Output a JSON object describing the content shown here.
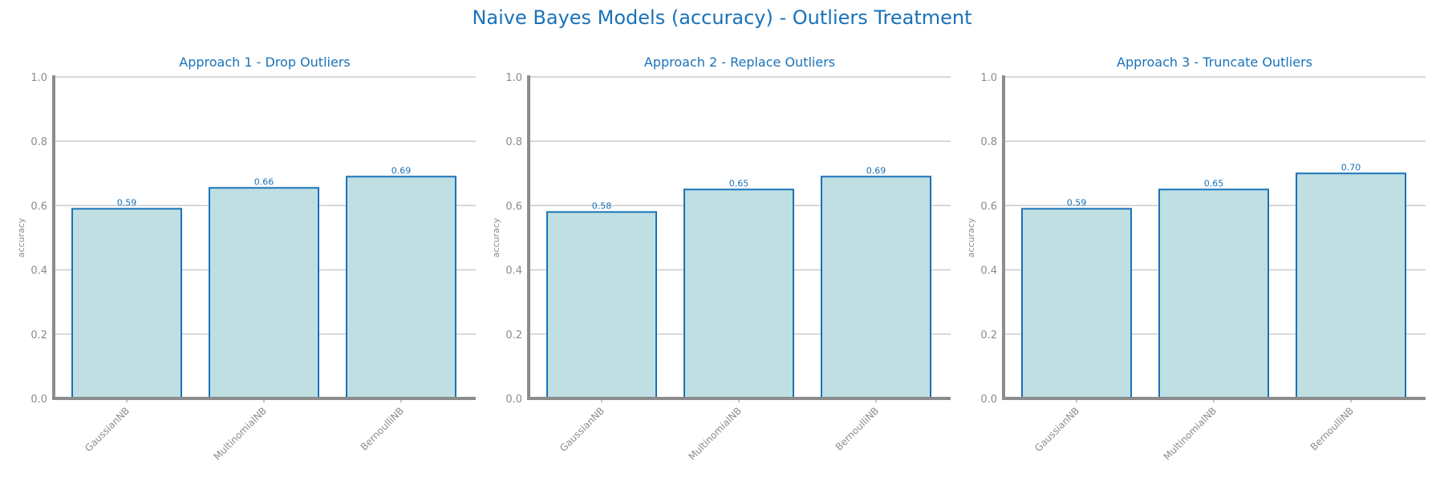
{
  "title": "Naive Bayes Models (accuracy) - Outliers Treatment",
  "colors": {
    "title": "#1a72b8",
    "bar_fill": "#bfdfe3",
    "bar_edge": "#1a72b8",
    "axis": "#8c8c8c",
    "grid": "#cccccc",
    "tick_text": "#8c8c8c",
    "data_label": "#1a72b8"
  },
  "chart_data": [
    {
      "type": "bar",
      "title": "Approach 1 - Drop Outliers",
      "categories": [
        "GaussianNB",
        "MultinomialNB",
        "BernoulliNB"
      ],
      "values": [
        0.59,
        0.655,
        0.69
      ],
      "data_labels": [
        "0.59",
        "0.66",
        "0.69"
      ],
      "xlabel": "",
      "ylabel": "accuracy",
      "ylim": [
        0,
        1
      ],
      "yticks": [
        "0.0",
        "0.2",
        "0.4",
        "0.6",
        "0.8",
        "1.0"
      ],
      "grid": true
    },
    {
      "type": "bar",
      "title": "Approach 2 - Replace Outliers",
      "categories": [
        "GaussianNB",
        "MultinomialNB",
        "BernoulliNB"
      ],
      "values": [
        0.58,
        0.65,
        0.69
      ],
      "data_labels": [
        "0.58",
        "0.65",
        "0.69"
      ],
      "xlabel": "",
      "ylabel": "accuracy",
      "ylim": [
        0,
        1
      ],
      "yticks": [
        "0.0",
        "0.2",
        "0.4",
        "0.6",
        "0.8",
        "1.0"
      ],
      "grid": true
    },
    {
      "type": "bar",
      "title": "Approach 3 - Truncate Outliers",
      "categories": [
        "GaussianNB",
        "MultinomialNB",
        "BernoulliNB"
      ],
      "values": [
        0.59,
        0.65,
        0.7
      ],
      "data_labels": [
        "0.59",
        "0.65",
        "0.70"
      ],
      "xlabel": "",
      "ylabel": "accuracy",
      "ylim": [
        0,
        1
      ],
      "yticks": [
        "0.0",
        "0.2",
        "0.4",
        "0.6",
        "0.8",
        "1.0"
      ],
      "grid": true
    }
  ]
}
